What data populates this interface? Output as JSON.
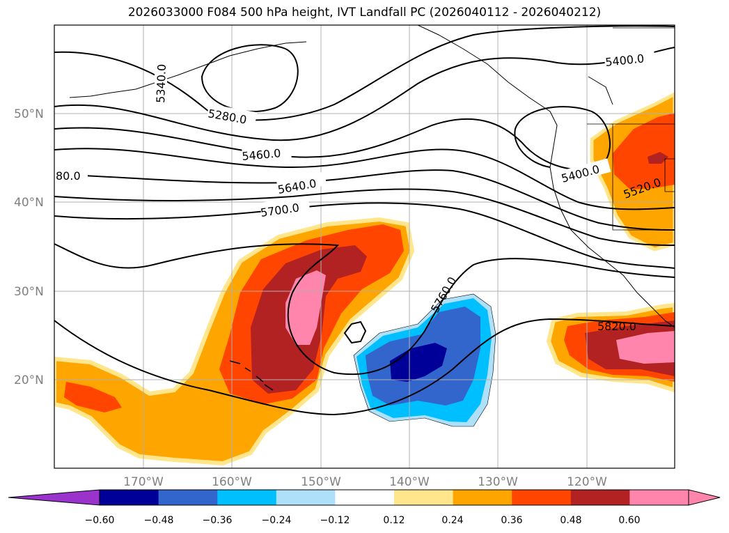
{
  "title": "2026033000 F084 500 hPa height, IVT Landfall PC (2026040112 - 2026040212)",
  "map": {
    "lat_labels": [
      "50°N",
      "40°N",
      "30°N",
      "20°N"
    ],
    "lon_labels": [
      "170°W",
      "160°W",
      "150°W",
      "140°W",
      "130°W",
      "120°W"
    ],
    "contour_labels": [
      "5340.0",
      "5280.0",
      "5460.0",
      "80.0",
      "5640.0",
      "5700.0",
      "5400.0",
      "5400.0",
      "5520.0",
      "5760.0",
      "5820.0"
    ]
  },
  "colorbar": {
    "colors": [
      "#9933cc",
      "#000099",
      "#3366cc",
      "#00bfff",
      "#aee0fa",
      "#ffffff",
      "#ffe68c",
      "#ffa500",
      "#ff4500",
      "#b22222",
      "#ff85ad",
      "#ff85ad"
    ],
    "tick_labels": [
      "−0.60",
      "−0.48",
      "−0.36",
      "−0.24",
      "−0.12",
      "0.12",
      "0.24",
      "0.36",
      "0.48",
      "0.60"
    ]
  }
}
